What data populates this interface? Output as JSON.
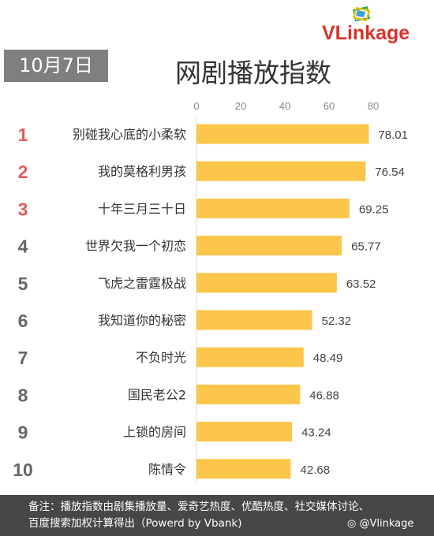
{
  "brand": {
    "logo_text": "VLinkage"
  },
  "header": {
    "date": "10月7日",
    "title": "网剧播放指数"
  },
  "chart_data": {
    "type": "bar",
    "orientation": "horizontal",
    "title": "网剧播放指数",
    "categories": [
      "别碰我心底的小柔软",
      "我的莫格利男孩",
      "十年三月三十日",
      "世界欠我一个初恋",
      "飞虎之雷霆极战",
      "我知道你的秘密",
      "不负时光",
      "国民老公2",
      "上锁的房间",
      "陈情令"
    ],
    "ranks": [
      "1",
      "2",
      "3",
      "4",
      "5",
      "6",
      "7",
      "8",
      "9",
      "10"
    ],
    "values": [
      78.01,
      76.54,
      69.25,
      65.77,
      63.52,
      52.32,
      48.49,
      46.88,
      43.24,
      42.68
    ],
    "value_labels": [
      "78.01",
      "76.54",
      "69.25",
      "65.77",
      "63.52",
      "52.32",
      "48.49",
      "46.88",
      "43.24",
      "42.68"
    ],
    "xticks": [
      "0",
      "20",
      "40",
      "60",
      "80"
    ],
    "xlim": [
      0,
      80
    ],
    "grid": false,
    "axis_position": "top",
    "colors": {
      "bar": "#fcc64b",
      "rank_top3": "#e25d5d",
      "rank_other": "#666666"
    }
  },
  "footer": {
    "note_line1": "备注：播放指数由剧集播放量、爱奇艺热度、优酷热度、社交媒体讨论、",
    "note_line2": "百度搜索加权计算得出（Powerd by Vbank)",
    "weibo_handle": "@Vlinkage"
  }
}
